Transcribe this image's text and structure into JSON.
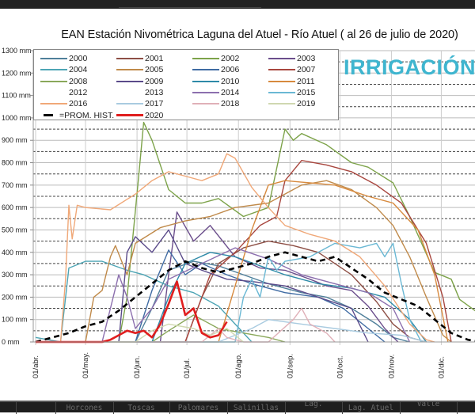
{
  "title": "EAN Estación Nivométrica Laguna del Atuel - Río Atuel  ( al 26 de julio de 2020)",
  "logo": {
    "text": "IRRIGACIÓN",
    "color": "#3fb5cf"
  },
  "bottom_table": {
    "cells": [
      "",
      "",
      "Horcones",
      "Toscas",
      "Palomares",
      "Salinillas",
      "Lag.",
      "Lag. Atuel",
      "Valle",
      ""
    ]
  },
  "chart_data": {
    "type": "line",
    "title": "EAN Estación Nivométrica Laguna del Atuel - Río Atuel  ( al 26 de julio de 2020)",
    "xlabel": "",
    "ylabel": "",
    "x_unit": "days since 01/abr.",
    "xlim": [
      0,
      268
    ],
    "ylim": [
      0,
      1300
    ],
    "y_ticks": [
      0,
      100,
      200,
      300,
      400,
      500,
      600,
      700,
      800,
      900,
      1000,
      1100,
      1200,
      1300
    ],
    "y_tick_labels": [
      "0 mm",
      "100 mm",
      "200 mm",
      "300 mm",
      "400 mm",
      "500 mm",
      "600 mm",
      "700 mm",
      "800 mm",
      "900 mm",
      "1000 mm",
      "1100 mm",
      "1200 mm",
      "1300 mm"
    ],
    "x_ticks": [
      0,
      30,
      61,
      91,
      122,
      153,
      183,
      214,
      244
    ],
    "x_tick_labels": [
      "01/abr.",
      "01/may.",
      "01/jun.",
      "01/jul.",
      "01/ago.",
      "01/sep.",
      "01/oct.",
      "01/nov.",
      "01/dic."
    ],
    "grid": "horizontal dashed",
    "legend_position": "top-left",
    "series": [
      {
        "name": "2000",
        "color": "#4f7f9a",
        "x": [
          0,
          60,
          70,
          80,
          95,
          110,
          125,
          140,
          160,
          175,
          190,
          205,
          215,
          225
        ],
        "y": [
          0,
          0,
          150,
          320,
          360,
          340,
          300,
          260,
          220,
          200,
          150,
          80,
          20,
          0
        ]
      },
      {
        "name": "2001",
        "color": "#8e4f45",
        "x": [
          0,
          90,
          100,
          110,
          125,
          140,
          155,
          170,
          190,
          205,
          215,
          225,
          235
        ],
        "y": [
          0,
          0,
          200,
          350,
          420,
          450,
          430,
          400,
          300,
          180,
          80,
          20,
          0
        ]
      },
      {
        "name": "2002",
        "color": "#7da34a",
        "x": [
          0,
          50,
          55,
          62,
          65,
          70,
          80,
          90,
          100,
          110,
          125,
          140,
          150,
          155,
          160,
          175,
          190,
          200,
          215,
          225,
          240,
          250,
          255,
          268
        ],
        "y": [
          0,
          0,
          200,
          740,
          980,
          900,
          680,
          620,
          620,
          640,
          560,
          600,
          950,
          900,
          930,
          880,
          800,
          780,
          710,
          560,
          310,
          280,
          190,
          120
        ]
      },
      {
        "name": "2003",
        "color": "#6b4e8c",
        "x": [
          0,
          75,
          80,
          85,
          95,
          105,
          120,
          135,
          150,
          165,
          175,
          190,
          200,
          210,
          218
        ],
        "y": [
          0,
          0,
          300,
          580,
          450,
          520,
          380,
          330,
          320,
          280,
          250,
          230,
          160,
          60,
          0
        ]
      },
      {
        "name": "2004",
        "color": "#4ea5b5",
        "x": [
          0,
          15,
          20,
          30,
          40,
          55,
          65,
          80,
          95,
          110,
          120,
          130
        ],
        "y": [
          20,
          0,
          330,
          360,
          360,
          320,
          300,
          250,
          220,
          160,
          80,
          0
        ]
      },
      {
        "name": "2005",
        "color": "#c08a4a",
        "x": [
          0,
          30,
          35,
          40,
          45,
          48,
          55,
          60,
          75,
          90,
          105,
          120,
          140,
          160,
          175,
          190,
          205,
          215,
          225,
          235,
          245,
          250
        ],
        "y": [
          0,
          0,
          200,
          230,
          380,
          430,
          300,
          440,
          510,
          540,
          560,
          600,
          620,
          700,
          720,
          680,
          600,
          520,
          380,
          200,
          30,
          0
        ]
      },
      {
        "name": "2006",
        "color": "#3f6ba3",
        "x": [
          0,
          60,
          70,
          80,
          90,
          100,
          115,
          130,
          150,
          170,
          185,
          200,
          210
        ],
        "y": [
          0,
          0,
          230,
          410,
          300,
          350,
          300,
          260,
          220,
          200,
          150,
          60,
          0
        ]
      },
      {
        "name": "2007",
        "color": "#a8463e",
        "x": [
          0,
          90,
          105,
          120,
          135,
          145,
          150,
          160,
          175,
          190,
          205,
          220,
          235,
          245,
          250
        ],
        "y": [
          0,
          0,
          300,
          400,
          520,
          560,
          720,
          810,
          790,
          760,
          700,
          620,
          440,
          200,
          0
        ]
      },
      {
        "name": "2008",
        "color": "#8aa85a",
        "x": [
          0,
          70,
          80,
          95,
          110,
          125,
          140,
          150
        ],
        "y": [
          0,
          0,
          50,
          120,
          60,
          40,
          20,
          0
        ]
      },
      {
        "name": "2009",
        "color": "#5a4a8a",
        "x": [
          0,
          50,
          55,
          60,
          70,
          80,
          90,
          100,
          115,
          130,
          150,
          170,
          190,
          200
        ],
        "y": [
          0,
          0,
          400,
          470,
          400,
          500,
          350,
          320,
          280,
          270,
          250,
          200,
          150,
          0
        ]
      },
      {
        "name": "2010",
        "color": "#2e8aa8",
        "x": [
          0,
          70,
          80,
          90,
          105,
          120,
          135,
          150,
          170,
          190,
          210,
          225,
          235
        ],
        "y": [
          0,
          0,
          200,
          350,
          400,
          380,
          340,
          300,
          260,
          240,
          200,
          100,
          0
        ]
      },
      {
        "name": "2011",
        "color": "#d78a3e",
        "x": [
          0,
          110,
          120,
          130,
          140,
          150,
          165,
          180,
          200,
          215,
          230,
          240,
          248
        ],
        "y": [
          0,
          0,
          250,
          500,
          700,
          720,
          710,
          700,
          650,
          620,
          500,
          300,
          0
        ]
      },
      {
        "name": "2012",
        "color": "#ffffff",
        "x": [],
        "y": []
      },
      {
        "name": "2013",
        "color": "#ffffff",
        "x": [],
        "y": []
      },
      {
        "name": "2014",
        "color": "#8c6fae",
        "x": [
          0,
          40,
          45,
          50,
          55,
          60,
          70,
          80,
          100,
          120,
          140,
          160,
          180,
          200,
          215,
          225
        ],
        "y": [
          0,
          0,
          150,
          300,
          200,
          60,
          150,
          280,
          350,
          420,
          370,
          300,
          260,
          220,
          150,
          0
        ]
      },
      {
        "name": "2015",
        "color": "#6ab8d4",
        "x": [
          0,
          120,
          125,
          130,
          135,
          140,
          145,
          150,
          165,
          180,
          195,
          205,
          210,
          215,
          220,
          225,
          232
        ],
        "y": [
          0,
          0,
          200,
          280,
          200,
          380,
          320,
          360,
          380,
          440,
          420,
          440,
          380,
          440,
          260,
          100,
          0
        ]
      },
      {
        "name": "2016",
        "color": "#f0a878",
        "x": [
          0,
          15,
          18,
          20,
          22,
          25,
          30,
          45,
          60,
          70,
          80,
          90,
          100,
          110,
          115,
          120,
          130,
          140,
          150,
          165,
          180,
          195,
          210,
          225,
          235,
          240
        ],
        "y": [
          0,
          0,
          280,
          610,
          460,
          610,
          600,
          590,
          660,
          720,
          760,
          740,
          720,
          750,
          840,
          820,
          690,
          600,
          520,
          480,
          450,
          380,
          250,
          80,
          10,
          0
        ]
      },
      {
        "name": "2017",
        "color": "#a9cbe0",
        "x": [
          0,
          110,
          120,
          130,
          140,
          160,
          180,
          200,
          220,
          235
        ],
        "y": [
          0,
          0,
          30,
          60,
          100,
          80,
          60,
          40,
          30,
          0
        ]
      },
      {
        "name": "2018",
        "color": "#e0b0b8",
        "x": [
          0,
          100,
          110,
          115,
          125,
          140,
          155,
          160,
          165,
          175,
          180
        ],
        "y": [
          0,
          0,
          60,
          20,
          0,
          0,
          100,
          150,
          80,
          40,
          0
        ]
      },
      {
        "name": "2019",
        "color": "#cfd8b0",
        "x": [
          0,
          60,
          70,
          80,
          95,
          105,
          115,
          125
        ],
        "y": [
          0,
          0,
          50,
          80,
          60,
          30,
          60,
          0
        ]
      },
      {
        "name": "PROM. HIST.",
        "color": "#000000",
        "dashed": true,
        "x": [
          0,
          20,
          30,
          40,
          50,
          60,
          70,
          80,
          90,
          100,
          110,
          120,
          130,
          140,
          150,
          160,
          170,
          180,
          190,
          200,
          210,
          220,
          230,
          240,
          250,
          260,
          268
        ],
        "y": [
          0,
          40,
          70,
          90,
          140,
          200,
          260,
          320,
          360,
          330,
          310,
          330,
          350,
          380,
          400,
          380,
          360,
          380,
          330,
          280,
          220,
          190,
          160,
          100,
          40,
          10,
          0
        ]
      },
      {
        "name": "2020",
        "color": "#e01e1e",
        "x": [
          0,
          10,
          20,
          30,
          40,
          45,
          50,
          55,
          60,
          65,
          70,
          75,
          80,
          85,
          90,
          95,
          100,
          105,
          110,
          115
        ],
        "y": [
          0,
          0,
          0,
          0,
          0,
          10,
          30,
          50,
          40,
          50,
          20,
          80,
          170,
          270,
          120,
          150,
          40,
          20,
          30,
          90
        ]
      }
    ],
    "legend": [
      "2000",
      "2001",
      "2002",
      "2003",
      "2004",
      "2005",
      "2006",
      "2007",
      "2008",
      "2009",
      "2010",
      "2011",
      "2012",
      "2013",
      "2014",
      "2015",
      "2016",
      "2017",
      "2018",
      "2019",
      "PROM. HIST.",
      "2020"
    ],
    "legend_label_prom": "=PROM. HIST."
  }
}
